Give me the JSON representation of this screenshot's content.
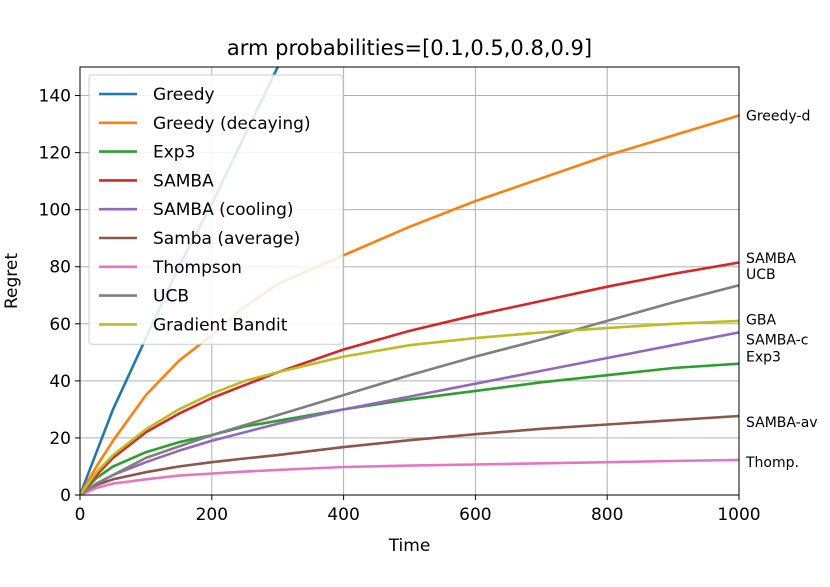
{
  "chart_data": {
    "type": "line",
    "title": "arm probabilities=[0.1,0.5,0.8,0.9]",
    "xlabel": "Time",
    "ylabel": "Regret",
    "xlim": [
      0,
      1000
    ],
    "ylim": [
      0,
      150
    ],
    "xticks": [
      0,
      200,
      400,
      600,
      800,
      1000
    ],
    "yticks": [
      0,
      20,
      40,
      60,
      80,
      100,
      120,
      140
    ],
    "grid": true,
    "legend_position": "top-left",
    "x": [
      0,
      25,
      50,
      100,
      150,
      200,
      250,
      300,
      400,
      500,
      600,
      700,
      800,
      900,
      1000
    ],
    "series": [
      {
        "name": "Greedy",
        "color": "#1f77b4",
        "end_label": "",
        "values": [
          0,
          15,
          30,
          55,
          80,
          102,
          126,
          150,
          null,
          null,
          null,
          null,
          null,
          null,
          null
        ]
      },
      {
        "name": "Greedy (decaying)",
        "color": "#ff7f0e",
        "end_label": "Greedy-d",
        "values": [
          0,
          10,
          19,
          35,
          47,
          56,
          66,
          74,
          84,
          94,
          103,
          111,
          119,
          126,
          133
        ]
      },
      {
        "name": "Exp3",
        "color": "#2ca02c",
        "end_label": "Exp3",
        "values": [
          0,
          6,
          10,
          15,
          18.5,
          21,
          24,
          26,
          30,
          33.5,
          36.5,
          39.5,
          42,
          44.5,
          46
        ]
      },
      {
        "name": "SAMBA",
        "color": "#d62728",
        "end_label": "SAMBA",
        "values": [
          0,
          7,
          13,
          22,
          28.5,
          34,
          38.5,
          43,
          51,
          57.5,
          63,
          68,
          73,
          77.5,
          81.5
        ]
      },
      {
        "name": "SAMBA (cooling)",
        "color": "#9467bd",
        "end_label": "SAMBA-c",
        "values": [
          0,
          4,
          7,
          11.5,
          15.5,
          19,
          22,
          25,
          30,
          34.5,
          39,
          43.5,
          48,
          52.5,
          57
        ]
      },
      {
        "name": "Samba (average)",
        "color": "#8c564b",
        "end_label": "SAMBA-av",
        "values": [
          0,
          3.5,
          5.5,
          8,
          10,
          11.5,
          12.8,
          14,
          16.8,
          19.2,
          21.3,
          23.2,
          24.7,
          26.2,
          27.7
        ]
      },
      {
        "name": "Thompson",
        "color": "#e377c2",
        "end_label": "Thomp.",
        "values": [
          0,
          2.5,
          4,
          5.5,
          6.8,
          7.5,
          8.2,
          8.8,
          9.8,
          10.3,
          10.7,
          11.1,
          11.5,
          11.9,
          12.3
        ]
      },
      {
        "name": "UCB",
        "color": "#7f7f7f",
        "end_label": "UCB",
        "values": [
          0,
          4,
          7,
          13,
          17,
          21,
          24.5,
          28,
          35,
          42,
          48.5,
          54.5,
          61,
          67.5,
          73.5
        ]
      },
      {
        "name": "Gradient Bandit",
        "color": "#bcbd22",
        "end_label": "GBA",
        "values": [
          0,
          8,
          14,
          23,
          30,
          35.5,
          40,
          43,
          48.5,
          52.5,
          55,
          57,
          58.5,
          60,
          61
        ]
      }
    ],
    "end_labels": [
      {
        "text": "Greedy-d",
        "y": 133
      },
      {
        "text": "SAMBA",
        "y": 83
      },
      {
        "text": "UCB",
        "y": 77.5
      },
      {
        "text": "GBA",
        "y": 61.5
      },
      {
        "text": "SAMBA-c",
        "y": 54.5
      },
      {
        "text": "Exp3",
        "y": 48.5
      },
      {
        "text": "SAMBA-av",
        "y": 25.5
      },
      {
        "text": "Thomp.",
        "y": 11.5
      }
    ]
  }
}
